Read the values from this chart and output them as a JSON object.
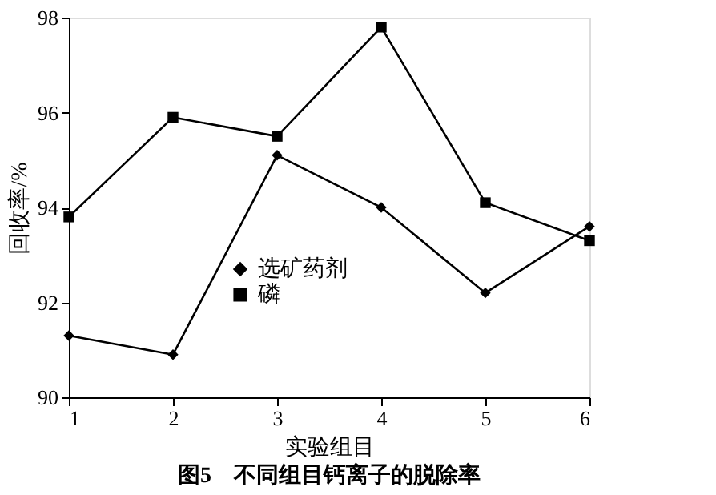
{
  "chart_data": {
    "type": "line",
    "title": "图5　不同组目钙离子的脱除率",
    "xlabel": "实验组目",
    "ylabel": "回收率/%",
    "x": [
      1,
      2,
      3,
      4,
      5,
      6
    ],
    "xlim": [
      1,
      6
    ],
    "xticks": [
      1,
      2,
      3,
      4,
      5,
      6
    ],
    "ylim": [
      90,
      98
    ],
    "yticks": [
      90,
      92,
      94,
      96,
      98
    ],
    "series": [
      {
        "name": "选矿药剂",
        "color": "#000000",
        "marker": "diamond",
        "values": [
          91.3,
          90.9,
          95.1,
          94.0,
          92.2,
          93.6
        ]
      },
      {
        "name": "磷",
        "color": "#000000",
        "marker": "square",
        "values": [
          93.8,
          95.9,
          95.5,
          97.8,
          94.1,
          93.3
        ]
      }
    ],
    "grid": false,
    "legend": "bottom left",
    "line_style": "solid"
  }
}
